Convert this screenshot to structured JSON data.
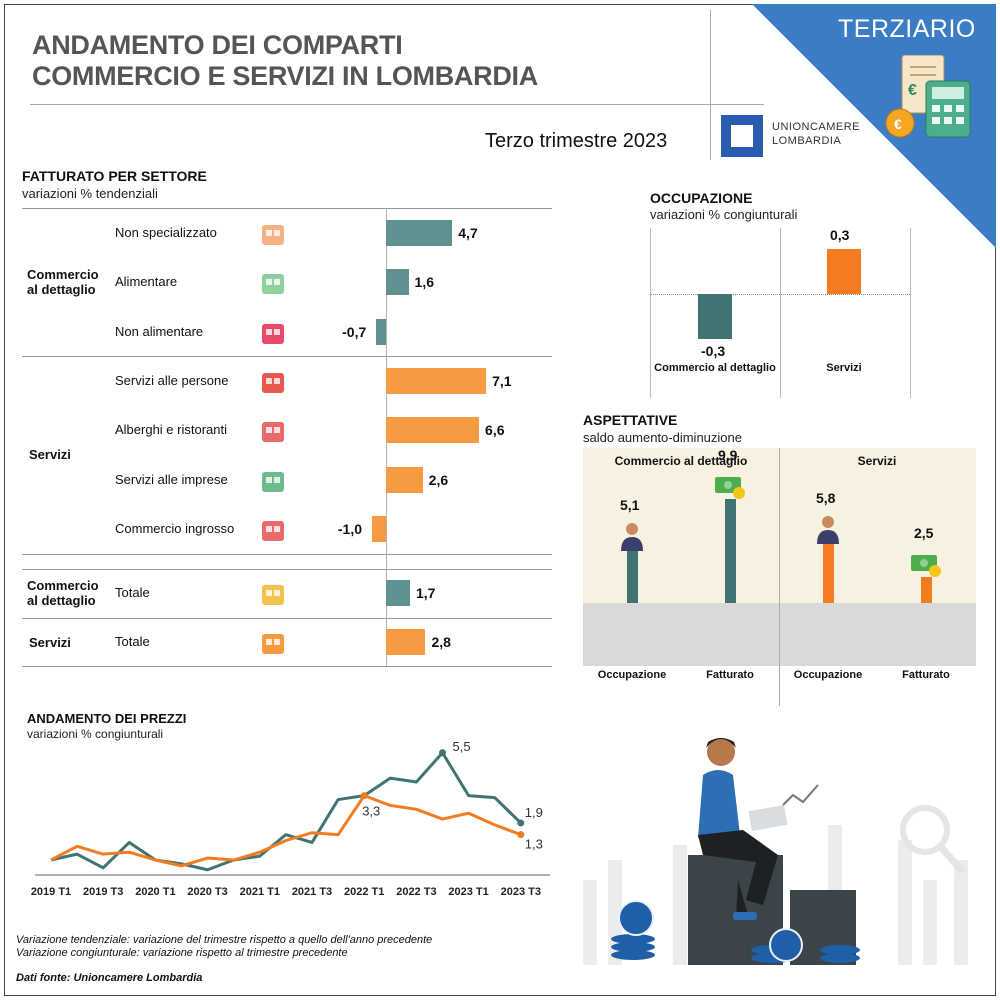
{
  "header": {
    "title_line1": "ANDAMENTO DEI COMPARTI",
    "title_line2": "COMMERCIO E SERVIZI IN LOMBARDIA",
    "quarter": "Terzo trimestre 2023",
    "logo_line1": "UNIONCAMERE",
    "logo_line2": "LOMBARDIA",
    "badge": "TERZIARIO"
  },
  "colors": {
    "teal": "#5e918f",
    "orange": "#f79a42",
    "dark_teal": "#427373",
    "deep_orange": "#f27c1f",
    "corner_blue": "#3a7dc4"
  },
  "fatturato": {
    "title": "FATTURATO PER SETTORE",
    "subtitle": "variazioni % tendenziali",
    "groups": [
      {
        "label": "Commercio al dettaglio",
        "label_l1": "Commercio",
        "label_l2": "al dettaglio"
      },
      {
        "label": "Servizi"
      }
    ],
    "totals_group_labels": [
      {
        "label_l1": "Commercio",
        "label_l2": "al dettaglio"
      },
      {
        "label_l1": "Servizi"
      }
    ]
  },
  "occupazione": {
    "title": "OCCUPAZIONE",
    "subtitle": "variazioni % congiunturali"
  },
  "aspettative": {
    "title": "ASPETTATIVE",
    "subtitle": "saldo aumento-diminuzione",
    "panels": [
      "Commercio al dettaglio",
      "Servizi"
    ]
  },
  "prezzi": {
    "title": "ANDAMENTO DEI PREZZI",
    "subtitle": "variazioni % congiunturali"
  },
  "notes": {
    "line1": "Variazione tendenziale: variazione del trimestre rispetto a quello dell'anno precedente",
    "line2": "Variazione congiunturale: variazione rispetto al trimestre precedente",
    "source": "Dati fonte: Unioncamere Lombardia"
  },
  "chart_data": [
    {
      "type": "bar",
      "title": "FATTURATO PER SETTORE",
      "orientation": "horizontal",
      "categories": [
        "Non specializzato",
        "Alimentare",
        "Non alimentare",
        "Servizi alle persone",
        "Alberghi e ristoranti",
        "Servizi alle imprese",
        "Commercio ingrosso",
        "Totale",
        "Totale"
      ],
      "values": [
        4.7,
        1.6,
        -0.7,
        7.1,
        6.6,
        2.6,
        -1.0,
        1.7,
        2.8
      ],
      "value_labels": [
        "4,7",
        "1,6",
        "-0,7",
        "7,1",
        "6,6",
        "2,6",
        "-1,0",
        "1,7",
        "2,8"
      ],
      "groups": [
        "Commercio al dettaglio",
        "Commercio al dettaglio",
        "Commercio al dettaglio",
        "Servizi",
        "Servizi",
        "Servizi",
        "Servizi",
        "Commercio al dettaglio",
        "Servizi"
      ]
    },
    {
      "type": "bar",
      "title": "OCCUPAZIONE",
      "categories": [
        "Commercio al dettaglio",
        "Servizi"
      ],
      "values": [
        -0.3,
        0.3
      ],
      "value_labels": [
        "-0,3",
        "0,3"
      ]
    },
    {
      "type": "bar",
      "title": "ASPETTATIVE",
      "panels": [
        {
          "name": "Commercio al dettaglio",
          "categories": [
            "Occupazione",
            "Fatturato"
          ],
          "values": [
            5.1,
            9.9
          ],
          "value_labels": [
            "5,1",
            "9,9"
          ]
        },
        {
          "name": "Servizi",
          "categories": [
            "Occupazione",
            "Fatturato"
          ],
          "values": [
            5.8,
            2.5
          ],
          "value_labels": [
            "5,8",
            "2,5"
          ]
        }
      ]
    },
    {
      "type": "line",
      "title": "ANDAMENTO DEI PREZZI",
      "x": [
        "2019 T1",
        "2019 T2",
        "2019 T3",
        "2019 T4",
        "2020 T1",
        "2020 T2",
        "2020 T3",
        "2020 T4",
        "2021 T1",
        "2021 T2",
        "2021 T3",
        "2021 T4",
        "2022 T1",
        "2022 T2",
        "2022 T3",
        "2022 T4",
        "2023 T1",
        "2023 T2",
        "2023 T3"
      ],
      "x_tick_labels": [
        "2019 T1",
        "2019 T3",
        "2020 T1",
        "2020 T3",
        "2021 T1",
        "2021 T3",
        "2022 T1",
        "2022 T3",
        "2023 T1",
        "2023 T3"
      ],
      "series": [
        {
          "color": "#427373",
          "values": [
            0.0,
            0.3,
            -0.4,
            0.9,
            0.0,
            -0.2,
            -0.5,
            0.0,
            0.2,
            1.3,
            0.9,
            3.1,
            3.3,
            4.2,
            4.0,
            5.5,
            3.3,
            3.2,
            1.9
          ],
          "point_labels": {
            "15": "5,5",
            "18": "1,9"
          }
        },
        {
          "color": "#f27c1f",
          "values": [
            0.0,
            0.7,
            0.3,
            0.4,
            0.0,
            -0.3,
            0.1,
            0.0,
            0.4,
            1.0,
            1.4,
            1.3,
            3.3,
            2.8,
            2.6,
            2.1,
            2.4,
            1.8,
            1.3
          ],
          "point_labels": {
            "12": "3,3",
            "18": "1,3"
          }
        }
      ]
    }
  ]
}
